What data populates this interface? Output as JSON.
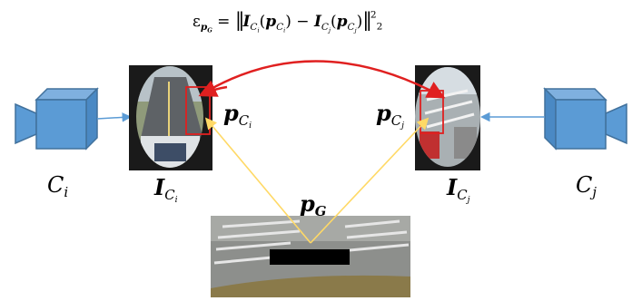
{
  "equation": {
    "lhs_symbol": "ε",
    "lhs_sub": "p",
    "lhs_sub_sub": "G",
    "equals": "=",
    "norm_open": "‖",
    "image_symbol": "I",
    "cam_symbol": "C",
    "index_i": "i",
    "index_j": "j",
    "point_symbol": "p",
    "minus": "−",
    "norm_close": "‖",
    "power": "2",
    "norm_sub": "2"
  },
  "labels": {
    "camera_left": {
      "base": "C",
      "sub": "i"
    },
    "camera_right": {
      "base": "C",
      "sub": "j"
    },
    "image_left": {
      "base": "I",
      "sub": "C",
      "subsub": "i"
    },
    "image_right": {
      "base": "I",
      "sub": "C",
      "subsub": "j"
    },
    "point_left": {
      "base": "p",
      "sub": "C",
      "subsub": "i"
    },
    "point_right": {
      "base": "p",
      "sub": "C",
      "subsub": "j"
    },
    "ground_point": {
      "base": "p",
      "sub": "G"
    }
  },
  "colors": {
    "camera_fill": "#5b9bd5",
    "camera_stroke": "#41719c",
    "projection_line": "#ffd966",
    "reprojection_arc": "#e02020",
    "patch_box": "#e02020",
    "occluder": "#000000"
  }
}
